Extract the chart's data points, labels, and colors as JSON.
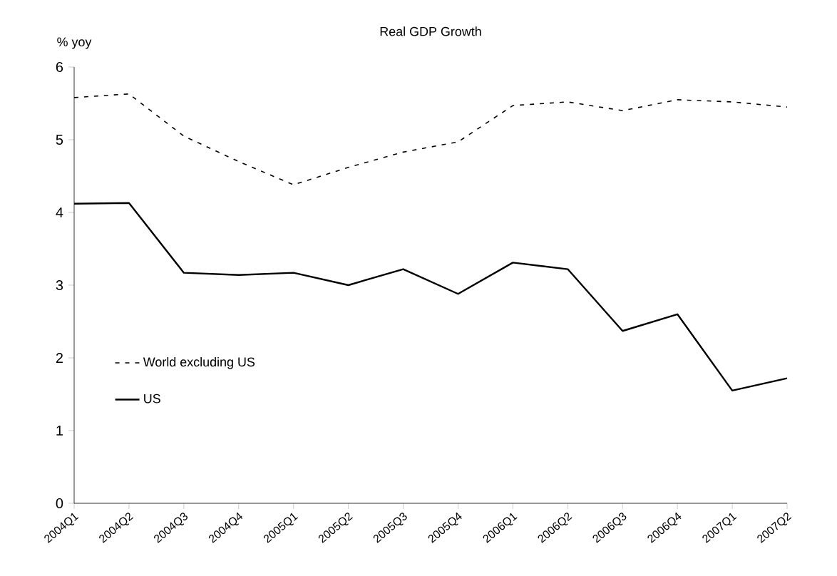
{
  "chart_data": {
    "type": "line",
    "title": "Real GDP Growth",
    "ylabel": "% yoy",
    "categories": [
      "2004Q1",
      "2004Q2",
      "2004Q3",
      "2004Q4",
      "2005Q1",
      "2005Q2",
      "2005Q3",
      "2005Q4",
      "2006Q1",
      "2006Q2",
      "2006Q3",
      "2006Q4",
      "2007Q1",
      "2007Q2"
    ],
    "series": [
      {
        "name": "World excluding US",
        "color": "#000000",
        "line_style": "dashed",
        "values": [
          5.58,
          5.63,
          5.05,
          4.7,
          4.38,
          4.62,
          4.83,
          4.97,
          5.47,
          5.52,
          5.4,
          5.55,
          5.52,
          5.45
        ]
      },
      {
        "name": "US",
        "color": "#000000",
        "line_style": "solid",
        "values": [
          4.12,
          4.13,
          3.17,
          3.14,
          3.17,
          3.0,
          3.22,
          2.88,
          3.31,
          3.22,
          2.37,
          2.6,
          1.55,
          1.72
        ]
      }
    ],
    "ylim": [
      0,
      6
    ],
    "yticks": [
      0,
      1,
      2,
      3,
      4,
      5,
      6
    ],
    "legend": "left",
    "grid": false,
    "marker": "none"
  }
}
